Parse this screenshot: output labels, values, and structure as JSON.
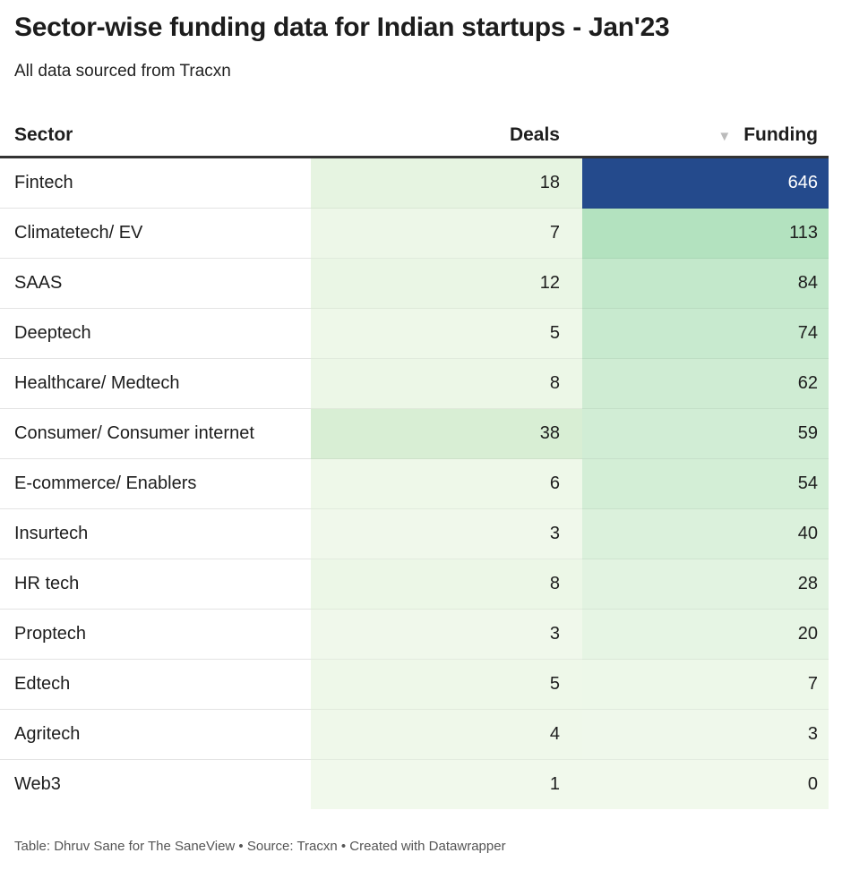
{
  "title": "Sector-wise funding data for Indian startups - Jan'23",
  "subtitle": "All data sourced from Tracxn",
  "footer": "Table: Dhruv Sane for The SaneView • Source: Tracxn • Created with Datawrapper",
  "chart_data": {
    "type": "table",
    "columns": [
      "Sector",
      "Deals",
      "Funding"
    ],
    "sort": {
      "column": "Funding",
      "direction": "descending",
      "icon": "sort-down-icon"
    },
    "rows": [
      {
        "sector": "Fintech",
        "deals": 18,
        "funding": 646
      },
      {
        "sector": "Climatetech/ EV",
        "deals": 7,
        "funding": 113
      },
      {
        "sector": "SAAS",
        "deals": 12,
        "funding": 84
      },
      {
        "sector": "Deeptech",
        "deals": 5,
        "funding": 74
      },
      {
        "sector": "Healthcare/ Medtech",
        "deals": 8,
        "funding": 62
      },
      {
        "sector": "Consumer/ Consumer internet",
        "deals": 38,
        "funding": 59
      },
      {
        "sector": "E-commerce/ Enablers",
        "deals": 6,
        "funding": 54
      },
      {
        "sector": "Insurtech",
        "deals": 3,
        "funding": 40
      },
      {
        "sector": "HR tech",
        "deals": 8,
        "funding": 28
      },
      {
        "sector": "Proptech",
        "deals": 3,
        "funding": 20
      },
      {
        "sector": "Edtech",
        "deals": 5,
        "funding": 7
      },
      {
        "sector": "Agritech",
        "deals": 4,
        "funding": 3
      },
      {
        "sector": "Web3",
        "deals": 1,
        "funding": 0
      }
    ],
    "colors": {
      "low": "#f1f9ec",
      "mid": "#b3e2bf",
      "high": "#244a8c"
    }
  }
}
